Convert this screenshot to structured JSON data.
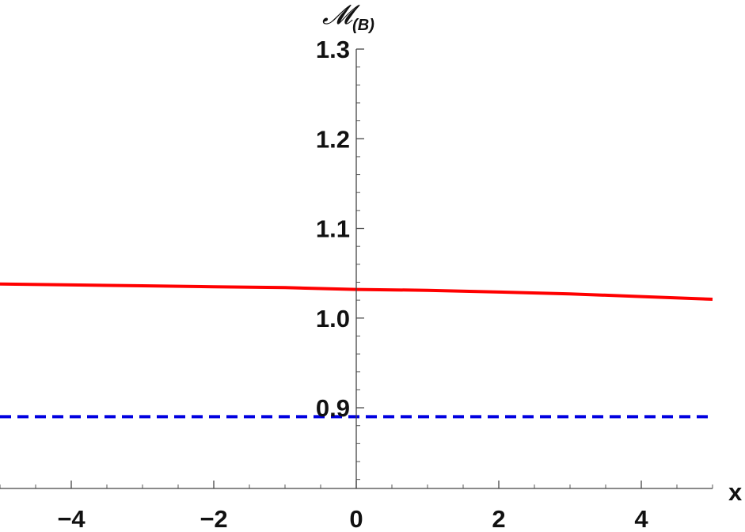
{
  "chart_data": {
    "type": "line",
    "title": "",
    "xlabel": "x",
    "ylabel_main": "𝓜",
    "ylabel_sub": "(B)",
    "xlim": [
      -5,
      5
    ],
    "ylim": [
      0.81,
      1.3
    ],
    "x_ticks": [
      -4,
      -2,
      0,
      2,
      4
    ],
    "x_tick_labels": [
      "−4",
      "−2",
      "0",
      "2",
      "4"
    ],
    "y_ticks": [
      0.9,
      1.0,
      1.1,
      1.2,
      1.3
    ],
    "y_tick_labels": [
      "0.9",
      "1.0",
      "1.1",
      "1.2",
      "1.3"
    ],
    "grid": false,
    "series": [
      {
        "color": "#ff0000",
        "style": "solid",
        "x": [
          -5,
          -4,
          -3,
          -2,
          -1,
          0,
          1,
          2,
          3,
          4,
          5
        ],
        "y": [
          1.038,
          1.037,
          1.036,
          1.035,
          1.034,
          1.032,
          1.031,
          1.029,
          1.027,
          1.024,
          1.021
        ]
      },
      {
        "color": "#0000e0",
        "style": "dashed",
        "x": [
          -5,
          5
        ],
        "y": [
          0.89,
          0.89
        ]
      }
    ]
  }
}
